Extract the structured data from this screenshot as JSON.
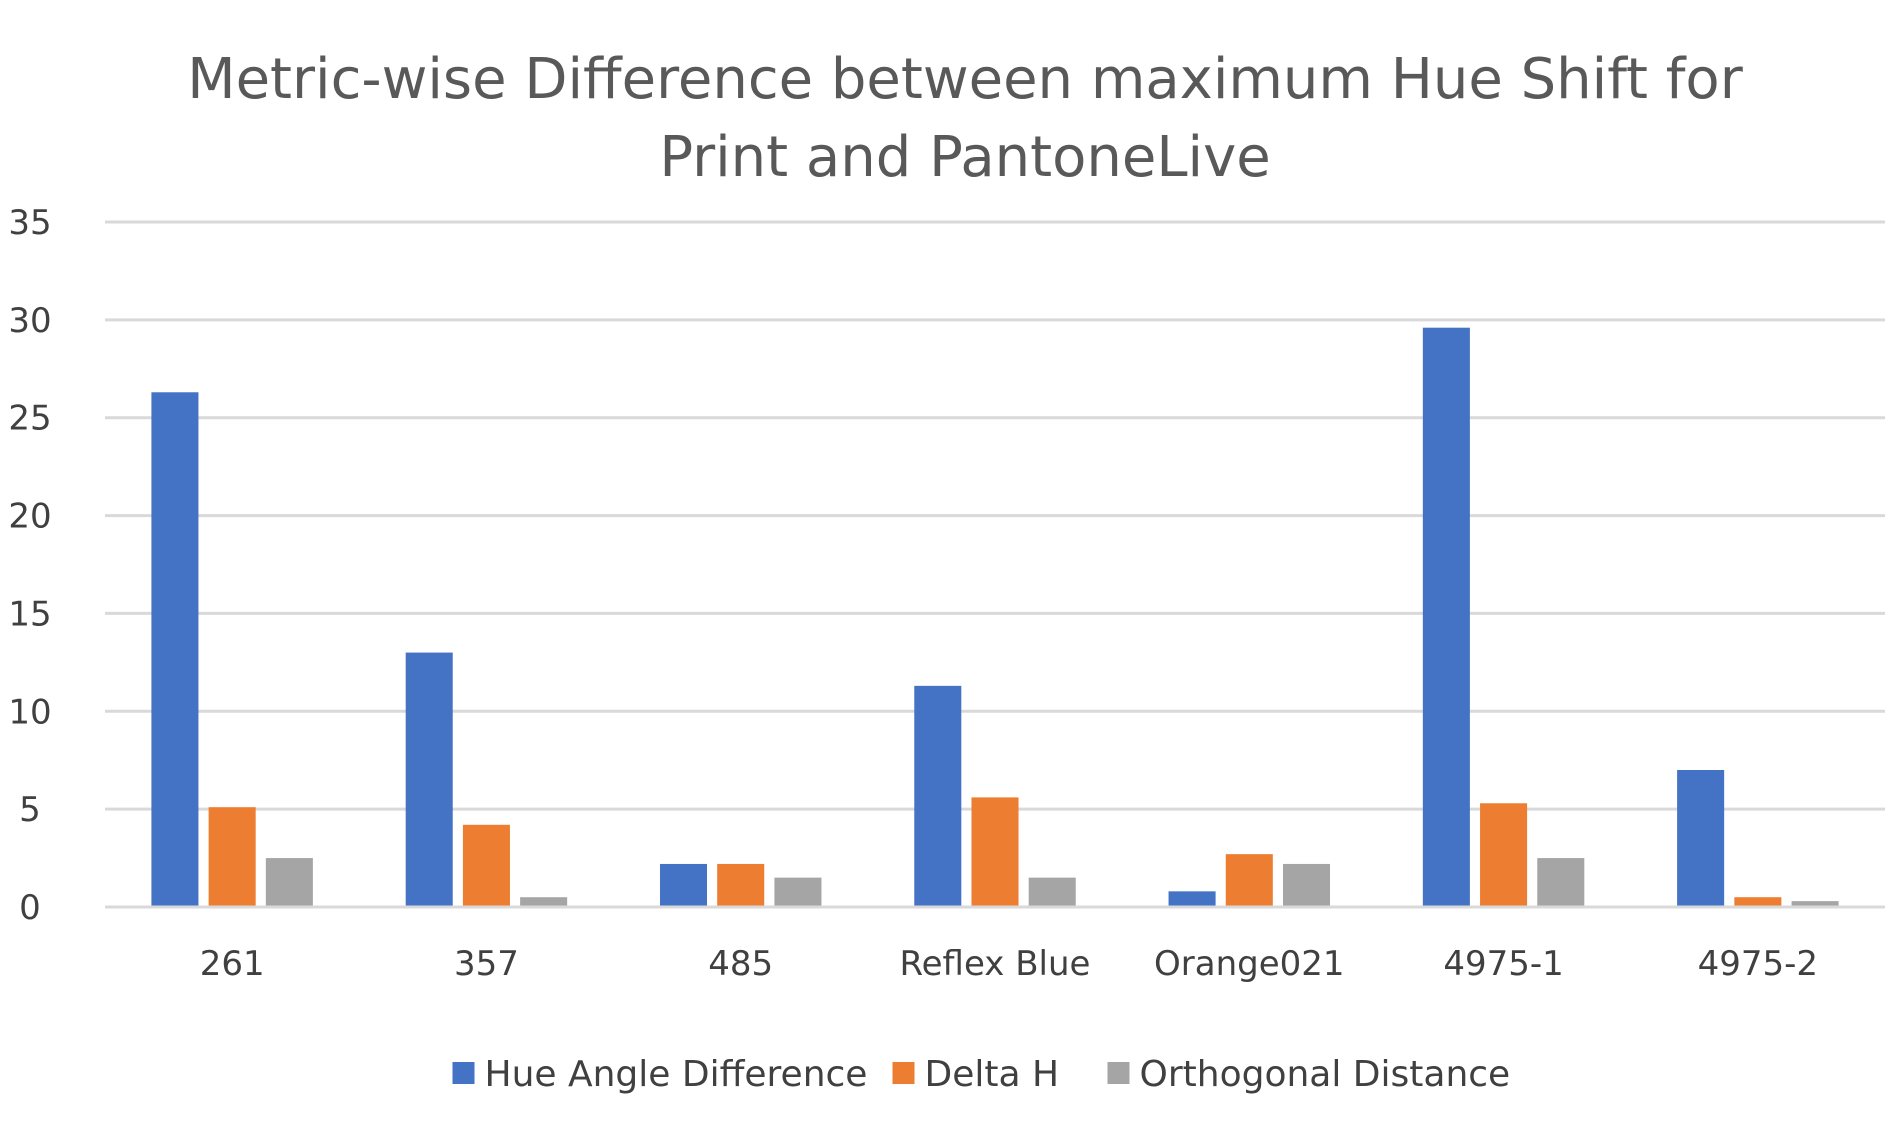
{
  "chart_data": {
    "type": "bar",
    "title_lines": [
      "Metric-wise Difference between maximum Hue Shift for",
      "Print and PantoneLive"
    ],
    "xlabel": "",
    "ylabel": "",
    "categories": [
      "261",
      "357",
      "485",
      "Reflex Blue",
      "Orange021",
      "4975-1",
      "4975-2"
    ],
    "series": [
      {
        "name": "Hue Angle Difference",
        "color": "#4472c4",
        "values": [
          26.3,
          13.0,
          2.2,
          11.3,
          0.8,
          29.6,
          7.0
        ]
      },
      {
        "name": "Delta H",
        "color": "#ed7d31",
        "values": [
          5.1,
          4.2,
          2.2,
          5.6,
          2.7,
          5.3,
          0.5
        ]
      },
      {
        "name": "Orthogonal Distance",
        "color": "#a5a5a5",
        "values": [
          2.5,
          0.5,
          1.5,
          1.5,
          2.2,
          2.5,
          0.3
        ]
      }
    ],
    "ylim": [
      0,
      35
    ],
    "yticks": [
      "0",
      "5",
      "10",
      "15",
      "20",
      "25",
      "30",
      "35"
    ],
    "grid": true,
    "legend_position": "bottom"
  }
}
